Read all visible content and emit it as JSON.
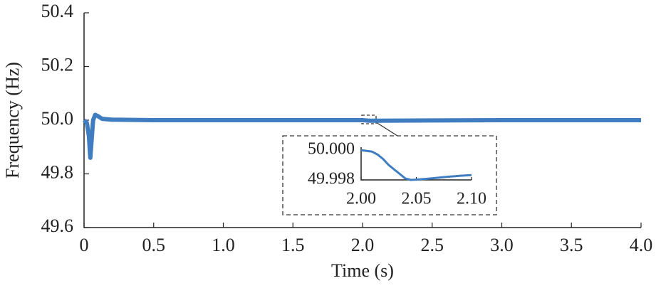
{
  "chart_data": [
    {
      "type": "line",
      "xlabel": "Time (s)",
      "ylabel": "Frequency (Hz)",
      "x": [
        0,
        0.02,
        0.035,
        0.045,
        0.055,
        0.065,
        0.08,
        0.1,
        0.13,
        0.2,
        0.5,
        1.0,
        1.5,
        2.0,
        2.05,
        2.1,
        2.5,
        3.0,
        3.5,
        4.0
      ],
      "series": [
        {
          "name": "Frequency",
          "color": "#3f7cc0",
          "values": [
            50.0,
            49.99,
            49.94,
            49.86,
            49.93,
            50.0,
            50.02,
            50.015,
            50.005,
            50.002,
            50.0,
            50.0,
            50.0,
            50.0,
            49.998,
            49.998,
            49.999,
            50.0,
            50.0,
            50.0
          ]
        }
      ],
      "xlim": [
        0,
        4.0
      ],
      "ylim": [
        49.6,
        50.4
      ],
      "xticks": [
        0,
        0.5,
        {
          "value": 1.0,
          "label": "1.0"
        },
        1.5,
        {
          "value": 2.0,
          "label": "2.0"
        },
        2.5,
        {
          "value": 3.0,
          "label": "3.0"
        },
        3.5,
        {
          "value": 4.0,
          "label": "4.0"
        }
      ],
      "yticks": [
        50.4,
        50.2,
        {
          "value": 50.0,
          "label": "50.0"
        },
        49.8,
        49.6
      ]
    },
    {
      "type": "line",
      "x": [
        2.0,
        2.01,
        2.015,
        2.02,
        2.025,
        2.03,
        2.035,
        2.04,
        2.045,
        2.05,
        2.06,
        2.07,
        2.08,
        2.09,
        2.1
      ],
      "series": [
        {
          "name": "Frequency",
          "color": "#3f7cc0",
          "values": [
            50.0,
            49.9999,
            49.9997,
            49.9994,
            49.999,
            49.9987,
            49.9984,
            49.9981,
            49.998,
            49.99802,
            49.99808,
            49.99815,
            49.99822,
            49.99828,
            49.99832
          ]
        }
      ],
      "xlim": [
        2.0,
        2.1
      ],
      "ylim": [
        49.998,
        50.0002
      ],
      "xticks": [
        {
          "value": 2.0,
          "label": "2.00"
        },
        {
          "value": 2.05,
          "label": "2.05"
        },
        {
          "value": 2.1,
          "label": "2.10"
        }
      ],
      "yticks": [
        {
          "value": 50.0,
          "label": "50.000"
        },
        {
          "value": 49.998,
          "label": "49.998"
        }
      ]
    }
  ]
}
